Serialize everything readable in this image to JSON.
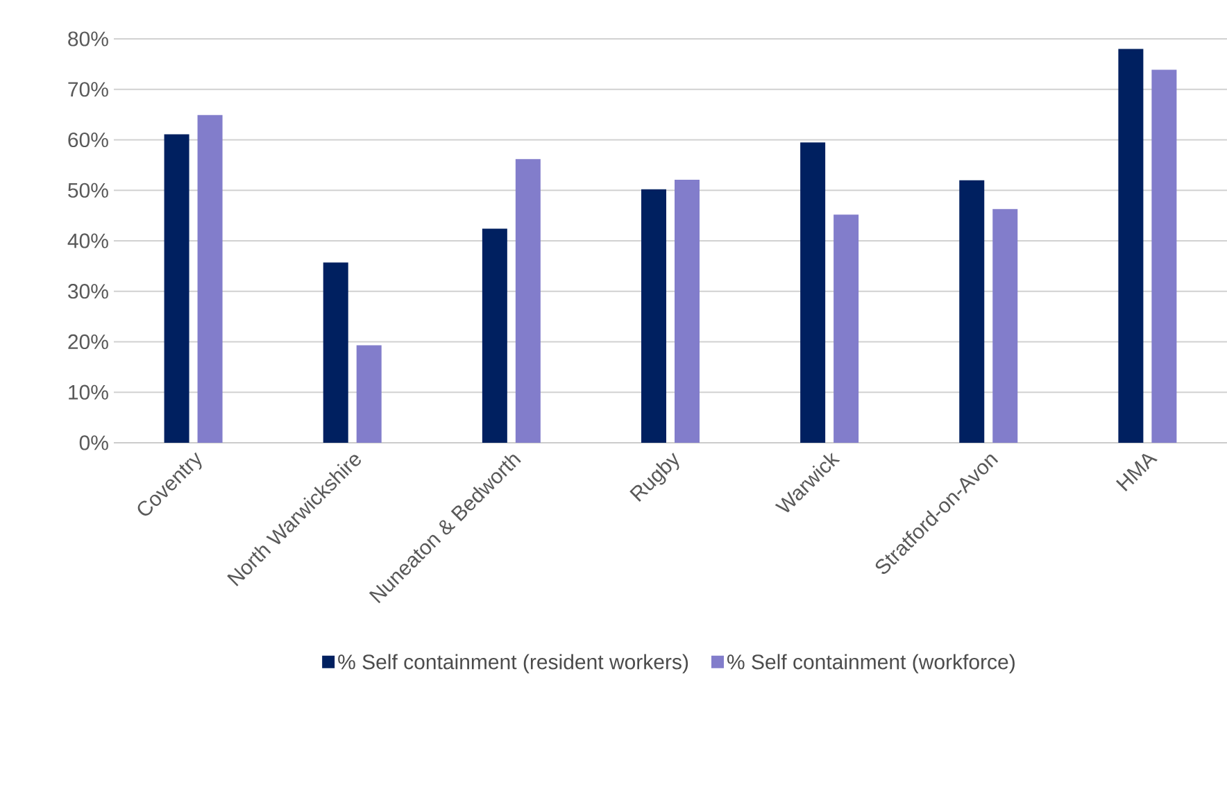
{
  "chart_data": {
    "type": "bar",
    "categories": [
      "Coventry",
      "North Warwickshire",
      "Nuneaton & Bedworth",
      "Rugby",
      "Warwick",
      "Stratford-on-Avon",
      "HMA"
    ],
    "series": [
      {
        "name": "% Self containment (resident workers)",
        "color": "#002060",
        "values": [
          61.1,
          35.7,
          42.4,
          50.2,
          59.5,
          52.0,
          78.0
        ]
      },
      {
        "name": "% Self containment (workforce)",
        "color": "#827dcb",
        "values": [
          64.9,
          19.3,
          56.2,
          52.1,
          45.2,
          46.3,
          73.9
        ]
      }
    ],
    "ylim": [
      0,
      80
    ],
    "yticks": [
      {
        "value": 0,
        "label": "0%"
      },
      {
        "value": 10,
        "label": "10%"
      },
      {
        "value": 20,
        "label": "20%"
      },
      {
        "value": 30,
        "label": "30%"
      },
      {
        "value": 40,
        "label": "40%"
      },
      {
        "value": 50,
        "label": "50%"
      },
      {
        "value": 60,
        "label": "60%"
      },
      {
        "value": 70,
        "label": "70%"
      },
      {
        "value": 80,
        "label": "80%"
      }
    ],
    "grid": "y",
    "legend": "bottom"
  }
}
